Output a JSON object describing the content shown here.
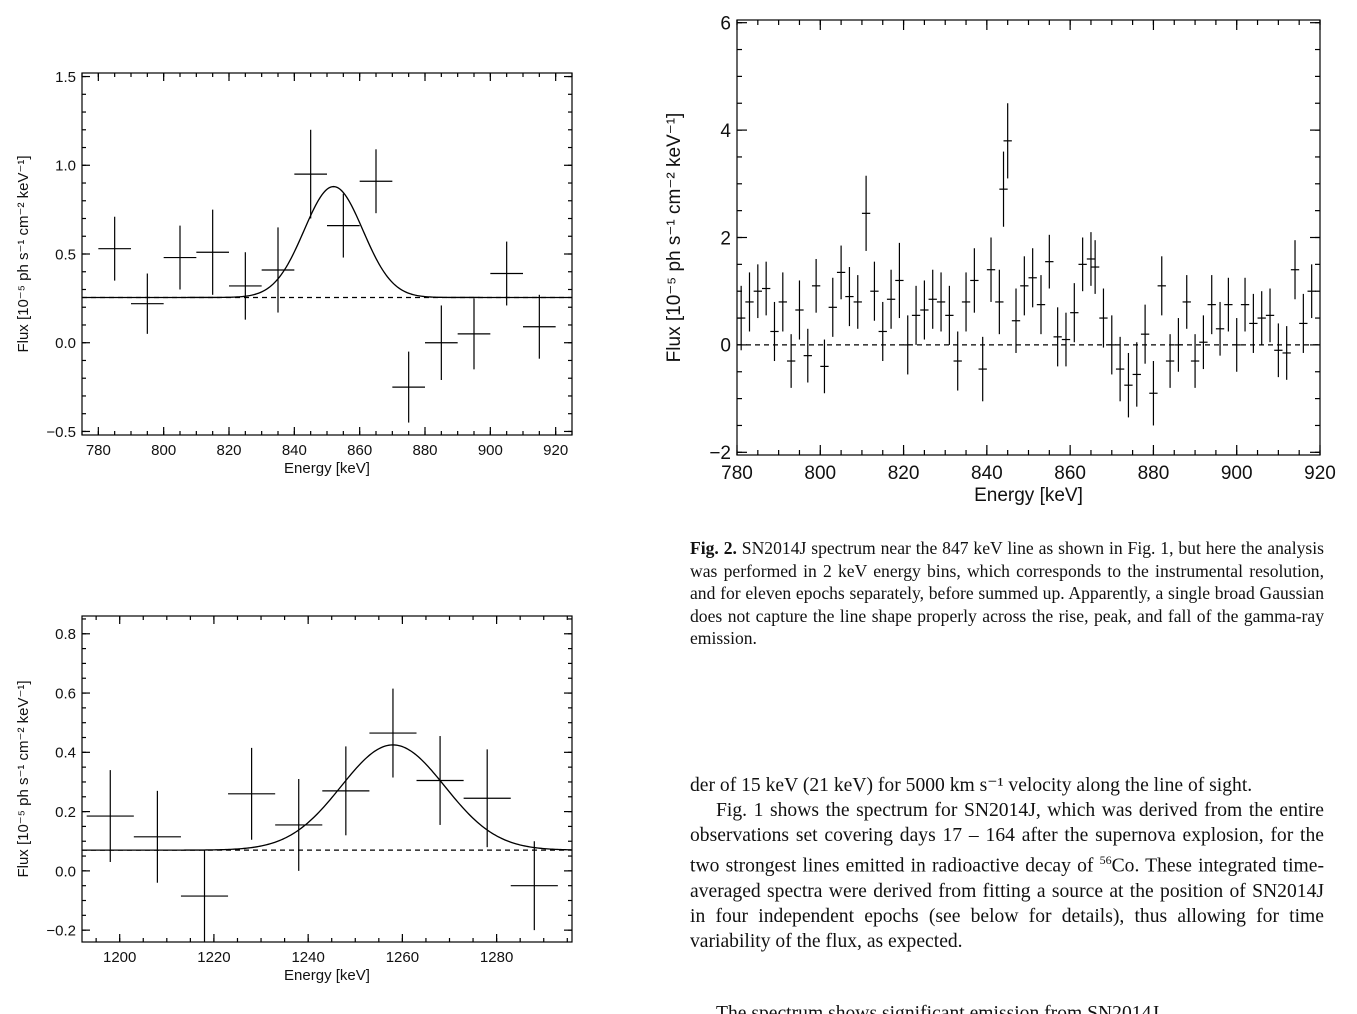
{
  "chart_data": [
    {
      "type": "scatter",
      "title": "",
      "xlabel": "Energy [keV]",
      "ylabel": "Flux [10⁻⁵ ph s⁻¹ cm⁻² keV⁻¹]",
      "xlim": [
        775,
        925
      ],
      "ylim": [
        -0.52,
        1.52
      ],
      "xticks": [
        780,
        800,
        820,
        840,
        860,
        880,
        900,
        920
      ],
      "xtick_labels": [
        "780",
        "800",
        "820",
        "840",
        "860",
        "880",
        "900",
        "920"
      ],
      "yticks": [
        -0.5,
        0.0,
        0.5,
        1.0,
        1.5
      ],
      "ytick_labels": [
        "−0.5",
        "0.0",
        "0.5",
        "1.0",
        "1.5"
      ],
      "grid": false,
      "points": [
        {
          "x": 785,
          "y": 0.53,
          "xerr": 5,
          "yerr": 0.18
        },
        {
          "x": 795,
          "y": 0.22,
          "xerr": 5,
          "yerr": 0.17
        },
        {
          "x": 805,
          "y": 0.48,
          "xerr": 5,
          "yerr": 0.18
        },
        {
          "x": 815,
          "y": 0.51,
          "xerr": 5,
          "yerr": 0.24
        },
        {
          "x": 825,
          "y": 0.32,
          "xerr": 5,
          "yerr": 0.19
        },
        {
          "x": 835,
          "y": 0.41,
          "xerr": 5,
          "yerr": 0.24
        },
        {
          "x": 845,
          "y": 0.95,
          "xerr": 5,
          "yerr": 0.25
        },
        {
          "x": 855,
          "y": 0.66,
          "xerr": 5,
          "yerr": 0.18
        },
        {
          "x": 865,
          "y": 0.91,
          "xerr": 5,
          "yerr": 0.18
        },
        {
          "x": 875,
          "y": -0.25,
          "xerr": 5,
          "yerr": 0.2
        },
        {
          "x": 885,
          "y": 0.0,
          "xerr": 5,
          "yerr": 0.21
        },
        {
          "x": 895,
          "y": 0.05,
          "xerr": 5,
          "yerr": 0.2
        },
        {
          "x": 905,
          "y": 0.39,
          "xerr": 5,
          "yerr": 0.18
        },
        {
          "x": 915,
          "y": 0.09,
          "xerr": 5,
          "yerr": 0.18
        }
      ],
      "baseline": 0.255,
      "gaussian": {
        "center": 852,
        "amplitude": 0.625,
        "sigma": 9
      }
    },
    {
      "type": "scatter",
      "title": "",
      "xlabel": "Energy [keV]",
      "ylabel": "Flux [10⁻⁵ ph s⁻¹ cm⁻² keV⁻¹]",
      "xlim": [
        780,
        920
      ],
      "ylim": [
        -2.05,
        6.05
      ],
      "xticks": [
        780,
        800,
        820,
        840,
        860,
        880,
        900,
        920
      ],
      "xtick_labels": [
        "780",
        "800",
        "820",
        "840",
        "860",
        "880",
        "900",
        "920"
      ],
      "yticks": [
        -2,
        0,
        2,
        4,
        6
      ],
      "ytick_labels": [
        "−2",
        "0",
        "2",
        "4",
        "6"
      ],
      "grid": false,
      "points": [
        {
          "x": 781,
          "y": 0.5,
          "xerr": 1,
          "yerr": 0.6
        },
        {
          "x": 783,
          "y": 0.8,
          "xerr": 1,
          "yerr": 0.55
        },
        {
          "x": 785,
          "y": 1.0,
          "xerr": 1,
          "yerr": 0.5
        },
        {
          "x": 787,
          "y": 1.05,
          "xerr": 1,
          "yerr": 0.5
        },
        {
          "x": 789,
          "y": 0.25,
          "xerr": 1,
          "yerr": 0.55
        },
        {
          "x": 791,
          "y": 0.8,
          "xerr": 1,
          "yerr": 0.55
        },
        {
          "x": 793,
          "y": -0.3,
          "xerr": 1,
          "yerr": 0.5
        },
        {
          "x": 795,
          "y": 0.65,
          "xerr": 1,
          "yerr": 0.55
        },
        {
          "x": 797,
          "y": -0.2,
          "xerr": 1,
          "yerr": 0.5
        },
        {
          "x": 799,
          "y": 1.1,
          "xerr": 1,
          "yerr": 0.5
        },
        {
          "x": 801,
          "y": -0.4,
          "xerr": 1,
          "yerr": 0.5
        },
        {
          "x": 803,
          "y": 0.7,
          "xerr": 1,
          "yerr": 0.55
        },
        {
          "x": 805,
          "y": 1.35,
          "xerr": 1,
          "yerr": 0.5
        },
        {
          "x": 807,
          "y": 0.9,
          "xerr": 1,
          "yerr": 0.55
        },
        {
          "x": 809,
          "y": 0.8,
          "xerr": 1,
          "yerr": 0.5
        },
        {
          "x": 811,
          "y": 2.45,
          "xerr": 1,
          "yerr": 0.7
        },
        {
          "x": 813,
          "y": 1.0,
          "xerr": 1,
          "yerr": 0.55
        },
        {
          "x": 815,
          "y": 0.25,
          "xerr": 1,
          "yerr": 0.55
        },
        {
          "x": 817,
          "y": 0.85,
          "xerr": 1,
          "yerr": 0.55
        },
        {
          "x": 819,
          "y": 1.2,
          "xerr": 1,
          "yerr": 0.7
        },
        {
          "x": 821,
          "y": 0.0,
          "xerr": 1,
          "yerr": 0.55
        },
        {
          "x": 823,
          "y": 0.55,
          "xerr": 1,
          "yerr": 0.55
        },
        {
          "x": 825,
          "y": 0.65,
          "xerr": 1,
          "yerr": 0.55
        },
        {
          "x": 827,
          "y": 0.85,
          "xerr": 1,
          "yerr": 0.55
        },
        {
          "x": 829,
          "y": 0.8,
          "xerr": 1,
          "yerr": 0.55
        },
        {
          "x": 831,
          "y": 0.55,
          "xerr": 1,
          "yerr": 0.55
        },
        {
          "x": 833,
          "y": -0.3,
          "xerr": 1,
          "yerr": 0.55
        },
        {
          "x": 835,
          "y": 0.8,
          "xerr": 1,
          "yerr": 0.55
        },
        {
          "x": 837,
          "y": 1.2,
          "xerr": 1,
          "yerr": 0.6
        },
        {
          "x": 839,
          "y": -0.45,
          "xerr": 1,
          "yerr": 0.6
        },
        {
          "x": 841,
          "y": 1.4,
          "xerr": 1,
          "yerr": 0.6
        },
        {
          "x": 843,
          "y": 0.8,
          "xerr": 1,
          "yerr": 0.6
        },
        {
          "x": 844,
          "y": 2.9,
          "xerr": 1,
          "yerr": 0.7
        },
        {
          "x": 845,
          "y": 3.8,
          "xerr": 1,
          "yerr": 0.7
        },
        {
          "x": 847,
          "y": 0.45,
          "xerr": 1,
          "yerr": 0.6
        },
        {
          "x": 849,
          "y": 1.1,
          "xerr": 1,
          "yerr": 0.55
        },
        {
          "x": 851,
          "y": 1.25,
          "xerr": 1,
          "yerr": 0.55
        },
        {
          "x": 853,
          "y": 0.75,
          "xerr": 1,
          "yerr": 0.55
        },
        {
          "x": 855,
          "y": 1.55,
          "xerr": 1,
          "yerr": 0.5
        },
        {
          "x": 857,
          "y": 0.15,
          "xerr": 1,
          "yerr": 0.55
        },
        {
          "x": 859,
          "y": 0.1,
          "xerr": 1,
          "yerr": 0.5
        },
        {
          "x": 861,
          "y": 0.6,
          "xerr": 1,
          "yerr": 0.55
        },
        {
          "x": 863,
          "y": 1.5,
          "xerr": 1,
          "yerr": 0.5
        },
        {
          "x": 865,
          "y": 1.6,
          "xerr": 1,
          "yerr": 0.5
        },
        {
          "x": 866,
          "y": 1.45,
          "xerr": 1,
          "yerr": 0.5
        },
        {
          "x": 868,
          "y": 0.5,
          "xerr": 1,
          "yerr": 0.55
        },
        {
          "x": 870,
          "y": 0.0,
          "xerr": 1,
          "yerr": 0.55
        },
        {
          "x": 872,
          "y": -0.45,
          "xerr": 1,
          "yerr": 0.6
        },
        {
          "x": 874,
          "y": -0.75,
          "xerr": 1,
          "yerr": 0.6
        },
        {
          "x": 876,
          "y": -0.55,
          "xerr": 1,
          "yerr": 0.6
        },
        {
          "x": 878,
          "y": 0.2,
          "xerr": 1,
          "yerr": 0.55
        },
        {
          "x": 880,
          "y": -0.9,
          "xerr": 1,
          "yerr": 0.6
        },
        {
          "x": 882,
          "y": 1.1,
          "xerr": 1,
          "yerr": 0.55
        },
        {
          "x": 884,
          "y": -0.3,
          "xerr": 1,
          "yerr": 0.5
        },
        {
          "x": 886,
          "y": 0.0,
          "xerr": 1,
          "yerr": 0.5
        },
        {
          "x": 888,
          "y": 0.8,
          "xerr": 1,
          "yerr": 0.5
        },
        {
          "x": 890,
          "y": -0.3,
          "xerr": 1,
          "yerr": 0.5
        },
        {
          "x": 892,
          "y": 0.05,
          "xerr": 1,
          "yerr": 0.5
        },
        {
          "x": 894,
          "y": 0.75,
          "xerr": 1,
          "yerr": 0.55
        },
        {
          "x": 896,
          "y": 0.3,
          "xerr": 1,
          "yerr": 0.5
        },
        {
          "x": 898,
          "y": 0.75,
          "xerr": 1,
          "yerr": 0.5
        },
        {
          "x": 900,
          "y": 0.0,
          "xerr": 1,
          "yerr": 0.5
        },
        {
          "x": 902,
          "y": 0.75,
          "xerr": 1,
          "yerr": 0.5
        },
        {
          "x": 904,
          "y": 0.4,
          "xerr": 1,
          "yerr": 0.55
        },
        {
          "x": 906,
          "y": 0.5,
          "xerr": 1,
          "yerr": 0.5
        },
        {
          "x": 908,
          "y": 0.55,
          "xerr": 1,
          "yerr": 0.5
        },
        {
          "x": 910,
          "y": -0.1,
          "xerr": 1,
          "yerr": 0.5
        },
        {
          "x": 912,
          "y": -0.15,
          "xerr": 1,
          "yerr": 0.5
        },
        {
          "x": 914,
          "y": 1.4,
          "xerr": 1,
          "yerr": 0.55
        },
        {
          "x": 916,
          "y": 0.4,
          "xerr": 1,
          "yerr": 0.55
        },
        {
          "x": 918,
          "y": 1.0,
          "xerr": 1,
          "yerr": 0.5
        }
      ],
      "baseline": 0.0
    },
    {
      "type": "scatter",
      "title": "",
      "xlabel": "Energy [keV]",
      "ylabel": "Flux [10⁻⁵ ph s⁻¹ cm⁻² keV⁻¹]",
      "xlim": [
        1192,
        1296
      ],
      "ylim": [
        -0.24,
        0.86
      ],
      "xticks": [
        1200,
        1220,
        1240,
        1260,
        1280
      ],
      "xtick_labels": [
        "1200",
        "1220",
        "1240",
        "1260",
        "1280"
      ],
      "yticks": [
        -0.2,
        0.0,
        0.2,
        0.4,
        0.6,
        0.8
      ],
      "ytick_labels": [
        "−0.2",
        "0.0",
        "0.2",
        "0.4",
        "0.6",
        "0.8"
      ],
      "grid": false,
      "points": [
        {
          "x": 1198,
          "y": 0.185,
          "xerr": 5,
          "yerr": 0.155
        },
        {
          "x": 1208,
          "y": 0.115,
          "xerr": 5,
          "yerr": 0.155
        },
        {
          "x": 1218,
          "y": -0.085,
          "xerr": 5,
          "yerr": 0.155
        },
        {
          "x": 1228,
          "y": 0.26,
          "xerr": 5,
          "yerr": 0.155
        },
        {
          "x": 1238,
          "y": 0.155,
          "xerr": 5,
          "yerr": 0.155
        },
        {
          "x": 1248,
          "y": 0.27,
          "xerr": 5,
          "yerr": 0.15
        },
        {
          "x": 1258,
          "y": 0.465,
          "xerr": 5,
          "yerr": 0.15
        },
        {
          "x": 1268,
          "y": 0.305,
          "xerr": 5,
          "yerr": 0.15
        },
        {
          "x": 1278,
          "y": 0.245,
          "xerr": 5,
          "yerr": 0.165
        },
        {
          "x": 1288,
          "y": -0.05,
          "xerr": 5,
          "yerr": 0.15
        }
      ],
      "baseline": 0.07,
      "gaussian": {
        "center": 1258,
        "amplitude": 0.355,
        "sigma": 11
      }
    }
  ],
  "caption": {
    "label": "Fig. 2.",
    "text": " SN2014J spectrum near the 847 keV line as shown in Fig. 1, but here the analysis was performed in 2 keV energy bins, which corresponds to the instrumental resolution, and for eleven epochs separately, before summed up. Apparently, a single broad Gaussian does not capture the line shape properly across the rise, peak, and fall of the gamma-ray emission."
  },
  "body": {
    "para1": "der of 15 keV (21 keV) for 5000 km s⁻¹ velocity along the line of sight.",
    "para2_a": "Fig. 1 shows the spectrum for SN2014J, which was derived from the entire observations set covering days 17 – 164 after the supernova explosion, for the two strongest lines emitted in radioactive decay of ",
    "isotope_mass": "56",
    "isotope_element": "Co",
    "para2_b": ". These integrated time-averaged spectra were derived from fitting a source at the position of SN2014J in four independent epochs (see below for details), thus allowing for time variability of the flux, as expected.",
    "para3_partial": "The spectrum shows significant emission from SN2014J"
  }
}
